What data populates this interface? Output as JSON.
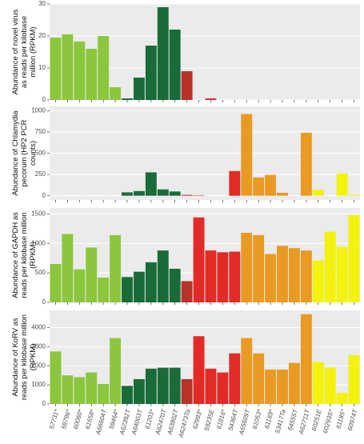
{
  "chart_data": [
    {
      "type": "bar",
      "ylabel": "Abundance of novel virus as reads per kilobase million (RPKM)",
      "values": [
        19.5,
        20.5,
        18.3,
        16,
        20,
        4,
        0.5,
        7,
        17,
        29,
        22,
        9,
        0,
        0.5,
        0,
        0,
        0,
        0,
        0,
        0,
        0,
        0,
        0,
        0,
        0,
        0
      ],
      "ylim": [
        0,
        30
      ],
      "yticks": [
        0,
        10,
        20,
        30
      ],
      "grid": true
    },
    {
      "type": "bar",
      "ylabel": "Abundance of Chlamydia pecorum (HP2 PCR counts)",
      "values": [
        0,
        0,
        0,
        0,
        0,
        0,
        40,
        55,
        275,
        75,
        50,
        10,
        5,
        0,
        0,
        290,
        960,
        215,
        245,
        35,
        0,
        740,
        70,
        0,
        260,
        10
      ],
      "ylim": [
        -50,
        1050
      ],
      "yticks": [
        0,
        250,
        500,
        750,
        1000
      ],
      "grid": true
    },
    {
      "type": "bar",
      "ylabel": "Abundance of GAPDH as reads per kilobase million (RPKM)",
      "values": [
        650,
        1160,
        560,
        930,
        420,
        1140,
        430,
        520,
        680,
        880,
        570,
        360,
        1440,
        880,
        850,
        860,
        1180,
        1140,
        820,
        960,
        920,
        880,
        710,
        1200,
        940,
        1480
      ],
      "ylim": [
        0,
        1600
      ],
      "yticks": [
        0,
        500,
        1000,
        1500
      ],
      "grid": true
    },
    {
      "type": "bar",
      "ylabel": "Abundance of KoRV as reads per kilobase million (RPKM)",
      "values": [
        2750,
        1500,
        1400,
        1650,
        1050,
        3450,
        950,
        1300,
        1850,
        1900,
        1900,
        1300,
        3550,
        1850,
        1650,
        2650,
        3450,
        2650,
        1800,
        1800,
        2150,
        4700,
        2200,
        1900,
        580,
        2550
      ],
      "ylim": [
        0,
        4900
      ],
      "yticks": [
        0,
        1000,
        2000,
        3000,
        4000
      ],
      "grid": true,
      "categories": [
        "57731*",
        "59796*",
        "60060*",
        "61658*",
        "A66604T",
        "59464*",
        "A62392T",
        "A64003T",
        "61203*",
        "A62470T",
        "A63802T",
        "A62473Ta",
        "62993*",
        "59235E",
        "61816*",
        "54364T",
        "A65609T",
        "61053*",
        "61169*",
        "53417Ta",
        "54555T",
        "A62711T",
        "60251E",
        "60293S*",
        "61185*",
        "60974T"
      ],
      "colors": [
        "#8cc63e",
        "#8cc63e",
        "#8cc63e",
        "#8cc63e",
        "#8cc63e",
        "#8cc63e",
        "#1a6b3a",
        "#1a6b3a",
        "#1a6b3a",
        "#1a6b3a",
        "#1a6b3a",
        "#b8322a",
        "#e22b26",
        "#e22b26",
        "#e22b26",
        "#e22b26",
        "#e89a23",
        "#e89a23",
        "#e89a23",
        "#e89a23",
        "#e89a23",
        "#e89a23",
        "#f2f20c",
        "#f2f20c",
        "#f2f20c",
        "#f2f20c"
      ]
    }
  ]
}
